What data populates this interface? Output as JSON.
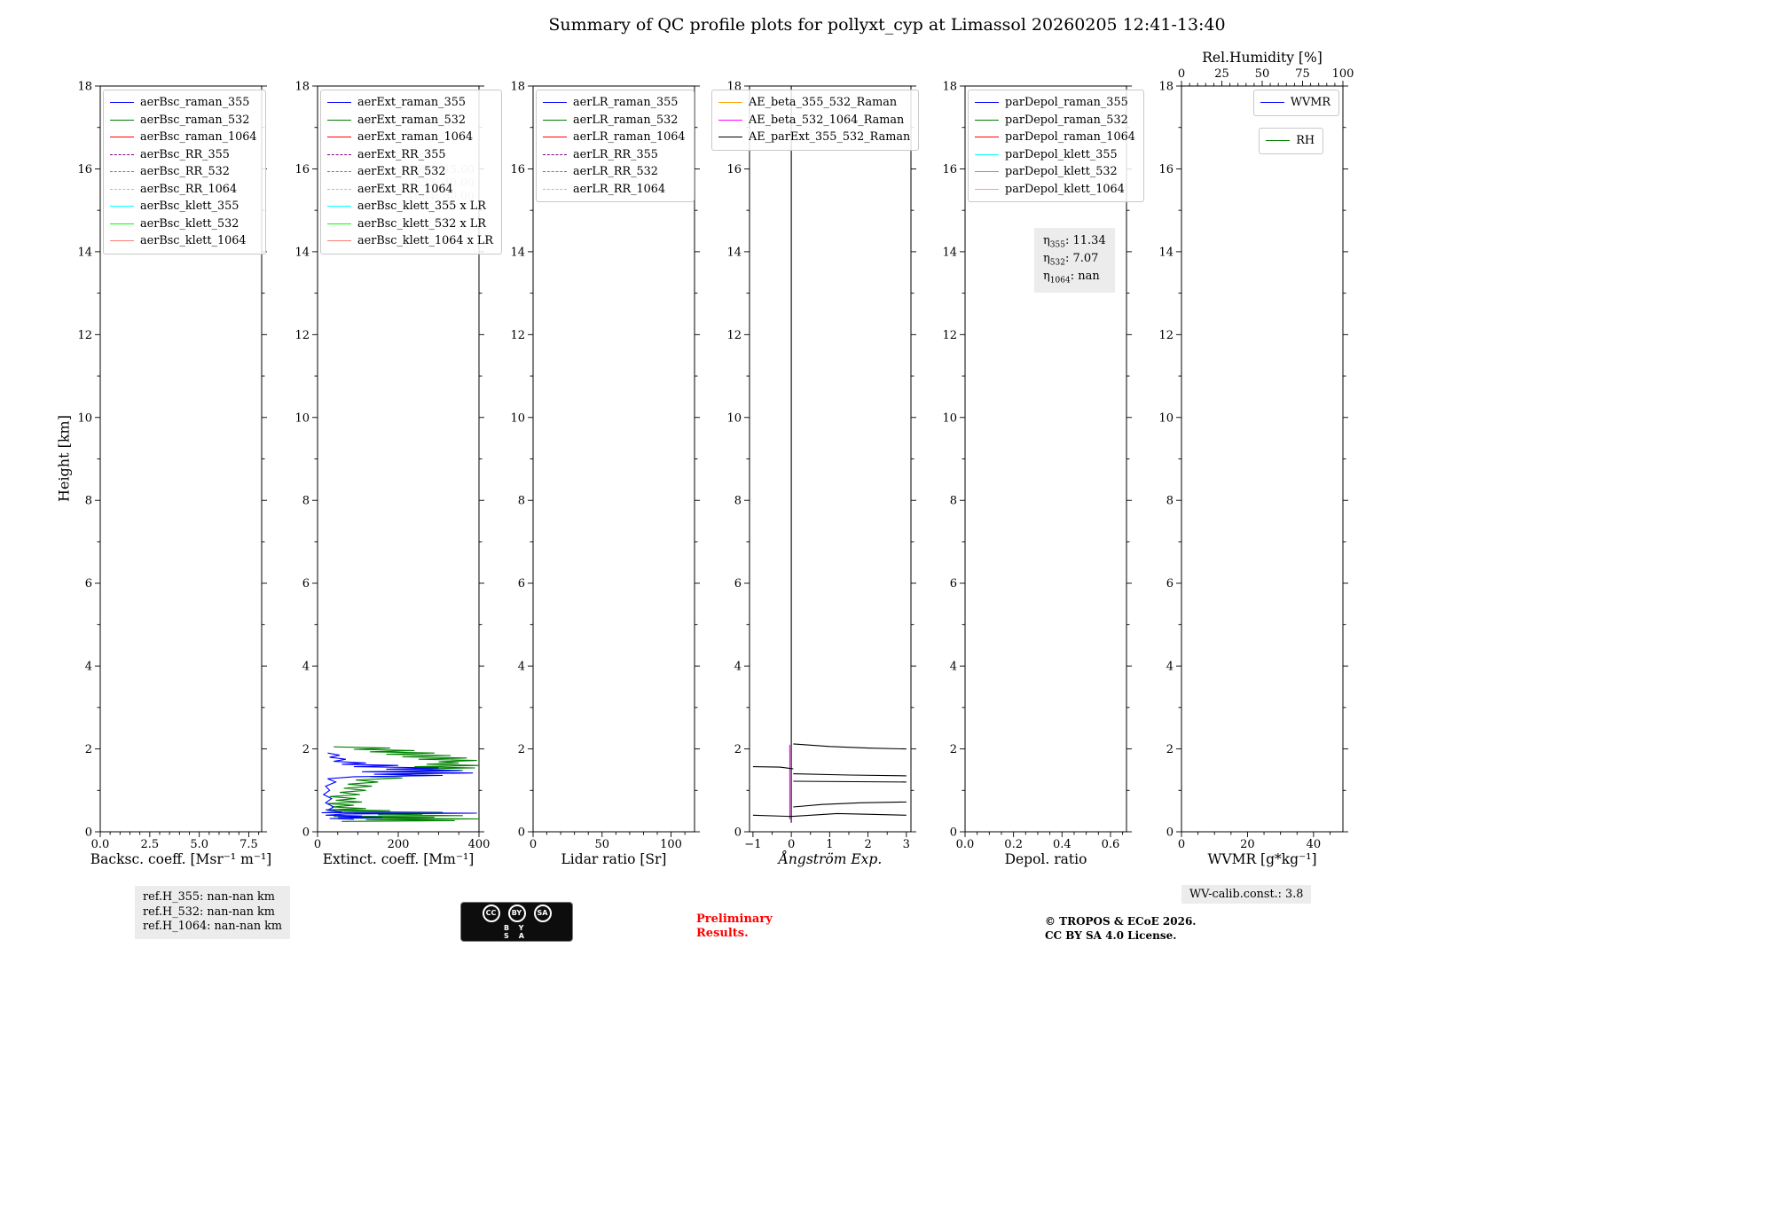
{
  "title": "Summary of QC profile plots for pollyxt_cyp at Limassol 20260205 12:41-13:40",
  "ylabel": "Height [km]",
  "footer": {
    "ref_lines": [
      "ref.H_355: nan-nan km",
      "ref.H_532: nan-nan km",
      "ref.H_1064: nan-nan km"
    ],
    "preliminary": [
      "Preliminary",
      "Results."
    ],
    "copyright": [
      "© TROPOS & ECoE 2026.",
      "CC BY SA 4.0 License."
    ],
    "wv_calib": "WV-calib.const.: 3.8",
    "cc_badge": {
      "circles": [
        "CC",
        "BY",
        "SA"
      ],
      "caption": "BY SA"
    }
  },
  "chart_data": {
    "type": "line",
    "ylim": [
      0,
      18
    ],
    "yticks": [
      0,
      2,
      4,
      6,
      8,
      10,
      12,
      14,
      16,
      18
    ],
    "panels": [
      {
        "xlabel": "Backsc. coeff. [Msr⁻¹ m⁻¹]",
        "xlim": [
          0,
          8.15
        ],
        "xticks": [
          0,
          2.5,
          5,
          7.5
        ],
        "xtick_labels": [
          "0.0",
          "2.5",
          "5.0",
          "7.5"
        ],
        "minor_step": 0.5,
        "legends": [
          {
            "pos": "nw",
            "items": [
              {
                "label": "aerBsc_raman_355",
                "color": "#0000ff"
              },
              {
                "label": "aerBsc_raman_532",
                "color": "#008000"
              },
              {
                "label": "aerBsc_raman_1064",
                "color": "#ff0000"
              },
              {
                "label": "aerBsc_RR_355",
                "color": "#800080",
                "dash": true
              },
              {
                "label": "aerBsc_RR_532",
                "color": "#8b8b00",
                "dash": true
              },
              {
                "label": "aerBsc_RR_1064",
                "color": "#ffa07a",
                "dash": true
              },
              {
                "label": "aerBsc_klett_355",
                "color": "#00ffff"
              },
              {
                "label": "aerBsc_klett_532",
                "color": "#00ff00"
              },
              {
                "label": "aerBsc_klett_1064",
                "color": "#fa8072"
              }
            ]
          }
        ],
        "series": []
      },
      {
        "xlabel": "Extinct. coeff. [Mm⁻¹]",
        "xlim": [
          0,
          400
        ],
        "xticks": [
          0,
          200,
          400
        ],
        "xtick_labels": [
          "0",
          "200",
          "400"
        ],
        "minor_step": 50,
        "watermark": [
          "355: 45.00",
          "532: 40.00",
          "1064: 50.00"
        ],
        "legends": [
          {
            "pos": "nw",
            "items": [
              {
                "label": "aerExt_raman_355",
                "color": "#0000ff"
              },
              {
                "label": "aerExt_raman_532",
                "color": "#008000"
              },
              {
                "label": "aerExt_raman_1064",
                "color": "#ff0000"
              },
              {
                "label": "aerExt_RR_355",
                "color": "#800080",
                "dash": true
              },
              {
                "label": "aerExt_RR_532",
                "color": "#8b8b00",
                "dash": true
              },
              {
                "label": "aerExt_RR_1064",
                "color": "#ffa07a",
                "dash": true
              },
              {
                "label": "aerBsc_klett_355 x LR",
                "color": "#00ffff"
              },
              {
                "label": "aerBsc_klett_532 x LR",
                "color": "#00ff00"
              },
              {
                "label": "aerBsc_klett_1064 x LR",
                "color": "#fa8072"
              }
            ]
          }
        ],
        "series": [
          {
            "name": "aerExt_raman_532",
            "color": "#008000",
            "x": [
              60,
              340,
              120,
              400,
              80,
              290,
              40,
              360,
              150,
              260,
              90,
              310,
              50,
              180,
              20,
              120,
              35,
              90,
              25,
              110,
              45,
              95,
              30,
              105,
              55,
              120,
              65,
              135,
              75,
              150,
              95,
              210,
              130,
              280,
              160,
              330,
              180,
              360,
              220,
              390,
              240,
              400,
              270,
              350,
              300,
              395,
              250,
              370,
              210,
              330,
              170,
              290,
              130,
              240,
              90,
              180,
              40
            ],
            "y": [
              0.25,
              0.27,
              0.29,
              0.31,
              0.33,
              0.35,
              0.37,
              0.39,
              0.41,
              0.43,
              0.45,
              0.47,
              0.49,
              0.51,
              0.53,
              0.56,
              0.6,
              0.64,
              0.68,
              0.72,
              0.76,
              0.8,
              0.85,
              0.9,
              0.95,
              1.0,
              1.05,
              1.1,
              1.15,
              1.2,
              1.25,
              1.3,
              1.33,
              1.36,
              1.39,
              1.42,
              1.45,
              1.48,
              1.51,
              1.54,
              1.57,
              1.6,
              1.63,
              1.66,
              1.69,
              1.72,
              1.75,
              1.78,
              1.81,
              1.84,
              1.87,
              1.9,
              1.93,
              1.96,
              1.99,
              2.02,
              2.05
            ]
          },
          {
            "name": "aerExt_raman_355",
            "color": "#0000ff",
            "x": [
              90,
              30,
              160,
              50,
              110,
              20,
              70,
              395,
              10,
              60,
              25,
              40,
              20,
              35,
              15,
              30,
              20,
              45,
              25,
              90,
              310,
              140,
              385,
              110,
              355,
              170,
              300,
              90,
              200,
              60,
              120,
              40,
              70,
              30,
              55,
              25
            ],
            "y": [
              0.3,
              0.32,
              0.34,
              0.36,
              0.38,
              0.4,
              0.43,
              0.45,
              0.46,
              0.48,
              0.52,
              0.6,
              0.7,
              0.8,
              0.9,
              1.0,
              1.1,
              1.2,
              1.28,
              1.33,
              1.36,
              1.39,
              1.42,
              1.45,
              1.48,
              1.51,
              1.54,
              1.57,
              1.6,
              1.63,
              1.66,
              1.7,
              1.75,
              1.8,
              1.85,
              1.9
            ]
          }
        ]
      },
      {
        "xlabel": "Lidar ratio [Sr]",
        "xlim": [
          0,
          117
        ],
        "xticks": [
          0,
          50,
          100
        ],
        "xtick_labels": [
          "0",
          "50",
          "100"
        ],
        "minor_step": 10,
        "legends": [
          {
            "pos": "nw",
            "items": [
              {
                "label": "aerLR_raman_355",
                "color": "#0000ff"
              },
              {
                "label": "aerLR_raman_532",
                "color": "#008000"
              },
              {
                "label": "aerLR_raman_1064",
                "color": "#ff0000"
              },
              {
                "label": "aerLR_RR_355",
                "color": "#800080",
                "dash": true
              },
              {
                "label": "aerLR_RR_532",
                "color": "#8b8b00",
                "dash": true
              },
              {
                "label": "aerLR_RR_1064",
                "color": "#ffa07a",
                "dash": true
              }
            ]
          }
        ],
        "series": []
      },
      {
        "xlabel": "Ångström Exp.",
        "xlabel_italic": true,
        "xlim": [
          -1.09,
          3.12
        ],
        "xticks": [
          -1,
          0,
          1,
          2,
          3
        ],
        "xtick_labels": [
          "−1",
          "0",
          "1",
          "2",
          "3"
        ],
        "minor_step": 0.5,
        "legends": [
          {
            "pos": "nw-wide",
            "items": [
              {
                "label": "AE_beta_355_532_Raman",
                "color": "#ffa500"
              },
              {
                "label": "AE_beta_532_1064_Raman",
                "color": "#ff00ff"
              },
              {
                "label": "AE_parExt_355_532_Raman",
                "color": "#000000"
              }
            ]
          }
        ],
        "series": [
          {
            "name": "AE_parExt_zero_line",
            "color": "#000000",
            "x": [
              0,
              0
            ],
            "y": [
              18,
              0.22
            ]
          },
          {
            "name": "AE_beta_532_1064_Raman",
            "color": "#ff00ff",
            "x": [
              -0.04,
              -0.04
            ],
            "y": [
              2.1,
              0.3
            ]
          },
          {
            "name": "AE_parExt_seg_2km",
            "color": "#000000",
            "x": [
              0.05,
              1,
              2,
              3
            ],
            "y": [
              2.12,
              2.06,
              2.02,
              2.0
            ]
          },
          {
            "name": "AE_parExt_seg_1p55",
            "color": "#000000",
            "x": [
              -1,
              -0.3,
              0.05
            ],
            "y": [
              1.57,
              1.56,
              1.52
            ]
          },
          {
            "name": "AE_parExt_seg_1p38",
            "color": "#000000",
            "x": [
              0.05,
              1.5,
              3
            ],
            "y": [
              1.4,
              1.37,
              1.35
            ]
          },
          {
            "name": "AE_parExt_seg_1p2",
            "color": "#000000",
            "x": [
              0.05,
              3
            ],
            "y": [
              1.22,
              1.2
            ]
          },
          {
            "name": "AE_parExt_seg_0p7",
            "color": "#000000",
            "x": [
              0.05,
              0.8,
              1.8,
              3
            ],
            "y": [
              0.6,
              0.66,
              0.7,
              0.72
            ]
          },
          {
            "name": "AE_parExt_seg_0p4",
            "color": "#000000",
            "x": [
              -1,
              0,
              1.2,
              2.2,
              3
            ],
            "y": [
              0.4,
              0.37,
              0.44,
              0.42,
              0.4
            ]
          }
        ]
      },
      {
        "xlabel": "Depol. ratio",
        "xlim": [
          0,
          0.666
        ],
        "xticks": [
          0,
          0.2,
          0.4,
          0.6
        ],
        "xtick_labels": [
          "0.0",
          "0.2",
          "0.4",
          "0.6"
        ],
        "minor_step": 0.05,
        "eta": [
          {
            "sub": "355",
            "value": "11.34"
          },
          {
            "sub": "532",
            "value": "7.07"
          },
          {
            "sub": "1064",
            "value": "nan"
          }
        ],
        "legends": [
          {
            "pos": "nw",
            "items": [
              {
                "label": "parDepol_raman_355",
                "color": "#0000ff"
              },
              {
                "label": "parDepol_raman_532",
                "color": "#008000"
              },
              {
                "label": "parDepol_raman_1064",
                "color": "#ff0000"
              },
              {
                "label": "parDepol_klett_355",
                "color": "#00ffff"
              },
              {
                "label": "parDepol_klett_532",
                "color": "#00ff00"
              },
              {
                "label": "parDepol_klett_1064",
                "color": "#ffa07a"
              }
            ]
          }
        ],
        "series": []
      },
      {
        "xlabel": "WVMR [g*kg⁻¹]",
        "xlim": [
          0,
          48.9
        ],
        "xticks": [
          0,
          20,
          40
        ],
        "xtick_labels": [
          "0",
          "20",
          "40"
        ],
        "minor_step": 5,
        "top_axis": {
          "label": "Rel.Humidity [%]",
          "lim": [
            0,
            100
          ],
          "ticks": [
            0,
            25,
            50,
            75,
            100
          ],
          "tick_labels": [
            "0",
            "25",
            "50",
            "75",
            "100"
          ],
          "minor_step": 5
        },
        "legends": [
          {
            "pos": "ne",
            "items": [
              {
                "label": "WVMR",
                "color": "#0000ff"
              }
            ]
          },
          {
            "pos": "ne2",
            "items": [
              {
                "label": "RH",
                "color": "#008000"
              }
            ]
          }
        ],
        "series": []
      }
    ]
  }
}
